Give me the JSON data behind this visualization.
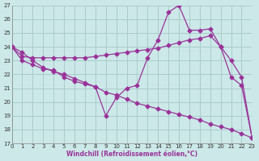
{
  "bg_color": "#cce8e8",
  "grid_color": "#aacccc",
  "line_color": "#993399",
  "xlim": [
    0,
    23
  ],
  "ylim": [
    17,
    27
  ],
  "xticks": [
    0,
    1,
    2,
    3,
    4,
    5,
    6,
    7,
    8,
    9,
    10,
    11,
    12,
    13,
    14,
    15,
    16,
    17,
    18,
    19,
    20,
    21,
    22,
    23
  ],
  "yticks": [
    17,
    18,
    19,
    20,
    21,
    22,
    23,
    24,
    25,
    26,
    27
  ],
  "xlabel": "Windchill (Refroidissement éolien,°C)",
  "line1_x": [
    0,
    1,
    2,
    3,
    4,
    5,
    6,
    7,
    8,
    9,
    10,
    11,
    12,
    13,
    14,
    15,
    16,
    17,
    18,
    19,
    20,
    21,
    22,
    23
  ],
  "line1_y": [
    24.0,
    23.3,
    23.2,
    23.2,
    23.2,
    23.2,
    23.2,
    23.2,
    23.3,
    23.4,
    23.5,
    23.6,
    23.7,
    23.8,
    23.9,
    24.1,
    24.3,
    24.5,
    24.6,
    24.8,
    24.0,
    23.0,
    21.8,
    17.4
  ],
  "line2_x": [
    0,
    1,
    2,
    3,
    4,
    5,
    6,
    7,
    8,
    9,
    10,
    11,
    12,
    13,
    14,
    15,
    16,
    17,
    18,
    19,
    20,
    21,
    22,
    23
  ],
  "line2_y": [
    24.0,
    23.0,
    22.7,
    22.4,
    22.3,
    21.8,
    21.5,
    21.3,
    21.1,
    19.0,
    20.3,
    21.0,
    21.2,
    23.2,
    24.5,
    26.5,
    27.0,
    25.2,
    25.2,
    25.3,
    24.0,
    21.8,
    21.2,
    17.4
  ],
  "line3_x": [
    0,
    1,
    2,
    3,
    4,
    5,
    6,
    7,
    8,
    9,
    10,
    11,
    12,
    13,
    14,
    15,
    16,
    17,
    18,
    19,
    20,
    21,
    22,
    23
  ],
  "line3_y": [
    24.0,
    23.6,
    23.0,
    22.5,
    22.2,
    22.0,
    21.7,
    21.4,
    21.1,
    20.7,
    20.5,
    20.2,
    19.9,
    19.7,
    19.5,
    19.3,
    19.1,
    18.9,
    18.7,
    18.4,
    18.2,
    18.0,
    17.7,
    17.4
  ]
}
